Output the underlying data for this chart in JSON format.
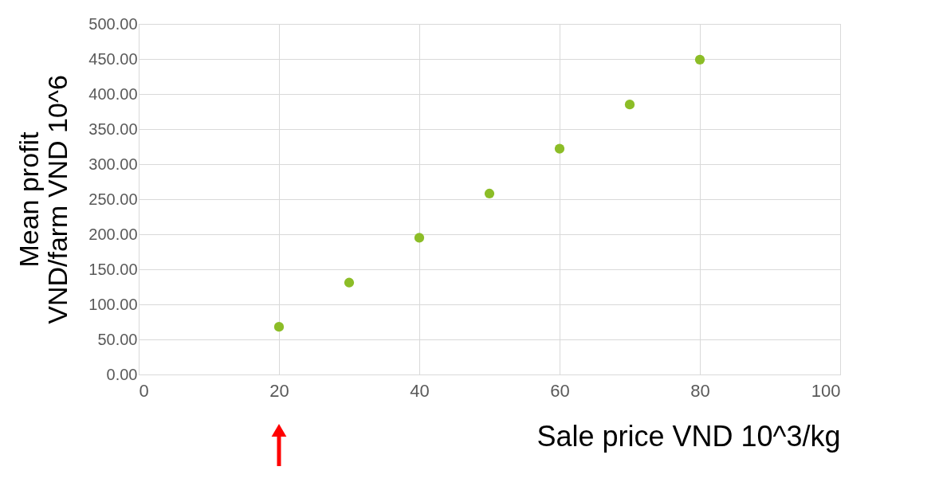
{
  "chart_data": {
    "type": "scatter",
    "xlabel": "Sale price VND 10^3/kg",
    "ylabel": "Mean profit\nVND/farm VND 10^6",
    "x": [
      20,
      30,
      40,
      50,
      60,
      70,
      80
    ],
    "series": [
      {
        "color": "#8cbd27",
        "values": [
          68,
          131,
          195,
          258,
          322,
          385,
          449
        ]
      }
    ],
    "xlim": [
      0,
      100
    ],
    "xticks": [
      0,
      20,
      40,
      60,
      80,
      100
    ],
    "ylim": [
      0,
      500
    ],
    "yticks": [
      {
        "value": 0,
        "label": "0.00"
      },
      {
        "value": 50,
        "label": "50.00"
      },
      {
        "value": 100,
        "label": "100.00"
      },
      {
        "value": 150,
        "label": "150.00"
      },
      {
        "value": 200,
        "label": "200.00"
      },
      {
        "value": 250,
        "label": "250.00"
      },
      {
        "value": 300,
        "label": "300.00"
      },
      {
        "value": 350,
        "label": "350.00"
      },
      {
        "value": 400,
        "label": "400.00"
      },
      {
        "value": 450,
        "label": "450.00"
      },
      {
        "value": 500,
        "label": "500.00"
      }
    ],
    "grid": true,
    "marker": "circle"
  }
}
